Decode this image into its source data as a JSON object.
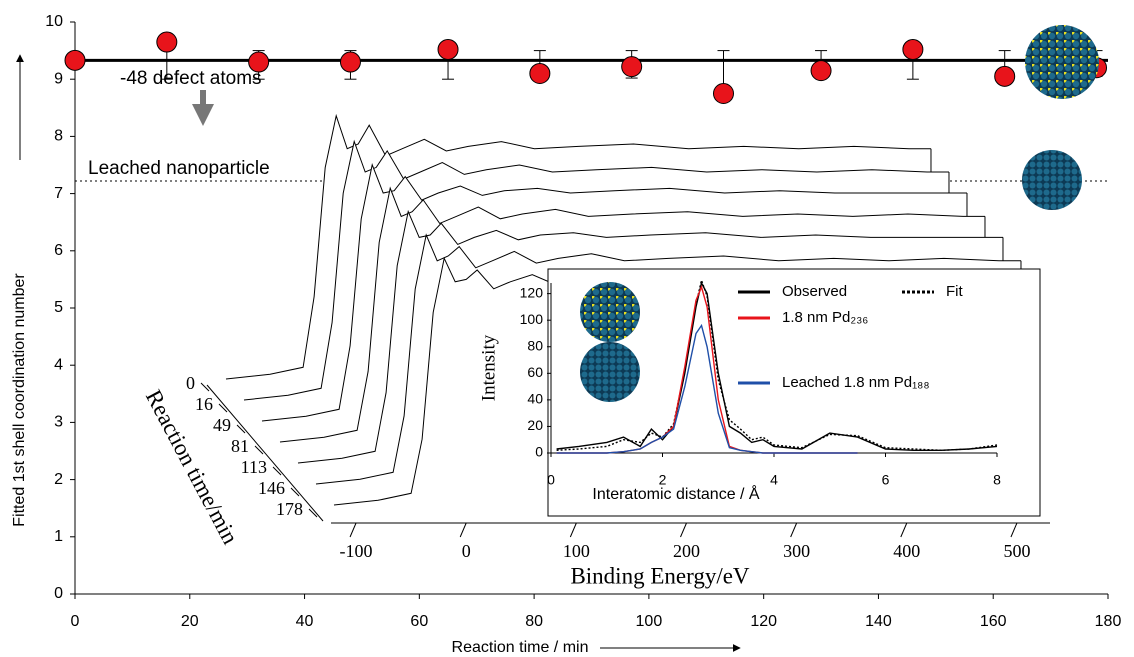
{
  "chart_data": [
    {
      "type": "scatter",
      "x_label": "Reaction time / min",
      "y_label": "Fitted 1st shell coordination number",
      "x": [
        0,
        16,
        32,
        48,
        65,
        81,
        97,
        113,
        130,
        146,
        162,
        178
      ],
      "values": [
        9.33,
        9.65,
        9.3,
        9.3,
        9.52,
        9.1,
        9.22,
        8.75,
        9.15,
        9.52,
        9.05,
        9.2
      ],
      "error_minus": [
        0,
        0.65,
        0.3,
        0.3,
        0.52,
        0,
        0.2,
        0,
        0,
        0.52,
        0,
        0.15
      ],
      "error_plus": [
        0,
        0,
        0.2,
        0.2,
        0,
        0.4,
        0.28,
        0.75,
        0.35,
        0,
        0.45,
        0.3
      ],
      "color": "#e8141b",
      "xlim": [
        0,
        180
      ],
      "ylim": [
        0,
        10
      ],
      "xticks": [
        0,
        20,
        40,
        60,
        80,
        100,
        120,
        140,
        160,
        180
      ],
      "yticks": [
        0,
        1,
        2,
        3,
        4,
        5,
        6,
        7,
        8,
        9,
        10
      ],
      "mean_line": 9.33,
      "reference_line": 7.22,
      "reference_label": "Leached nanoparticle",
      "annotation": "-48 defect atoms"
    },
    {
      "type": "waterfall",
      "x_label": "Binding Energy/eV",
      "z_label": "Reaction time/min",
      "x": [
        -120,
        -80,
        -50,
        -40,
        -30,
        -20,
        -10,
        0,
        10,
        25,
        40,
        60,
        80,
        100,
        130,
        160,
        200,
        250,
        300,
        350,
        400,
        450,
        500,
        520
      ],
      "xlim": [
        -130,
        530
      ],
      "ylim": [
        0,
        1.2
      ],
      "xticks": [
        -100,
        0,
        100,
        200,
        300,
        400,
        500
      ],
      "color": "#000000",
      "series": [
        {
          "name": "0",
          "values": [
            0.0,
            0.02,
            0.05,
            0.35,
            0.9,
            1.12,
            0.98,
            1.0,
            1.08,
            0.95,
            0.98,
            1.02,
            0.97,
            0.99,
            1.01,
            0.98,
            0.99,
            1.0,
            0.98,
            0.99,
            0.98,
            0.99,
            0.98,
            0.98
          ]
        },
        {
          "name": "16",
          "values": [
            0.0,
            0.02,
            0.05,
            0.33,
            0.88,
            1.1,
            0.97,
            0.99,
            1.06,
            0.94,
            0.97,
            1.01,
            0.96,
            0.98,
            1.0,
            0.97,
            0.98,
            0.99,
            0.97,
            0.98,
            0.97,
            0.98,
            0.97,
            0.97
          ]
        },
        {
          "name": "49",
          "values": [
            0.0,
            0.02,
            0.05,
            0.32,
            0.86,
            1.09,
            0.97,
            0.98,
            1.04,
            0.94,
            0.97,
            1.0,
            0.96,
            0.98,
            0.99,
            0.97,
            0.98,
            0.99,
            0.97,
            0.98,
            0.97,
            0.97,
            0.97,
            0.97
          ]
        },
        {
          "name": "81",
          "values": [
            0.0,
            0.02,
            0.05,
            0.3,
            0.85,
            1.08,
            0.96,
            0.98,
            1.03,
            0.93,
            0.96,
            1.0,
            0.95,
            0.97,
            0.99,
            0.96,
            0.97,
            0.98,
            0.96,
            0.97,
            0.96,
            0.97,
            0.96,
            0.96
          ]
        },
        {
          "name": "113",
          "values": [
            0.0,
            0.02,
            0.05,
            0.3,
            0.84,
            1.07,
            0.96,
            0.97,
            1.02,
            0.93,
            0.96,
            0.99,
            0.95,
            0.97,
            0.98,
            0.96,
            0.97,
            0.98,
            0.96,
            0.97,
            0.96,
            0.96,
            0.96,
            0.96
          ]
        },
        {
          "name": "146",
          "values": [
            0.0,
            0.02,
            0.05,
            0.29,
            0.83,
            1.06,
            0.95,
            0.97,
            1.01,
            0.92,
            0.95,
            0.99,
            0.94,
            0.96,
            0.98,
            0.95,
            0.96,
            0.97,
            0.95,
            0.96,
            0.95,
            0.96,
            0.95,
            0.95
          ]
        },
        {
          "name": "178",
          "values": [
            0.0,
            0.02,
            0.05,
            0.28,
            0.82,
            1.05,
            0.95,
            0.96,
            1.0,
            0.92,
            0.95,
            0.98,
            0.94,
            0.96,
            0.97,
            0.95,
            0.96,
            0.97,
            0.95,
            0.96,
            0.95,
            0.95,
            0.95,
            0.95
          ]
        }
      ]
    },
    {
      "type": "line",
      "x_label": "Interatomic distance / Å",
      "y_label": "Intensity",
      "x": [
        0.1,
        0.5,
        1.0,
        1.3,
        1.6,
        1.8,
        2.0,
        2.2,
        2.4,
        2.6,
        2.7,
        2.8,
        3.0,
        3.2,
        3.4,
        3.6,
        3.8,
        4.0,
        4.5,
        5.0,
        5.5,
        6.0,
        6.5,
        7.0,
        7.5,
        8.0
      ],
      "xlim": [
        0,
        8
      ],
      "ylim": [
        0,
        128
      ],
      "xticks": [
        0,
        2,
        4,
        6,
        8
      ],
      "yticks": [
        0,
        20,
        40,
        60,
        80,
        100,
        120
      ],
      "series": [
        {
          "name": "Observed",
          "color": "#000000",
          "dash": false,
          "values": [
            3,
            5,
            8,
            12,
            5,
            18,
            10,
            20,
            60,
            110,
            128,
            120,
            60,
            20,
            15,
            8,
            10,
            5,
            3,
            15,
            12,
            3,
            2,
            2,
            3,
            5
          ]
        },
        {
          "name": "Fit",
          "color": "#000000",
          "dash": true,
          "values": [
            2,
            3,
            5,
            10,
            8,
            15,
            12,
            22,
            62,
            112,
            130,
            118,
            55,
            25,
            18,
            10,
            12,
            6,
            4,
            14,
            13,
            4,
            3,
            2,
            3,
            6
          ]
        },
        {
          "name": "1.8 nm Pd₂₃₆",
          "color": "#e8141b",
          "dash": false,
          "values": [
            0,
            0,
            0,
            1,
            3,
            8,
            12,
            20,
            65,
            115,
            125,
            110,
            40,
            5,
            2,
            1,
            0,
            0,
            0,
            0,
            0,
            null,
            null,
            null,
            null,
            null
          ]
        },
        {
          "name": "Leached 1.8 nm Pd₁₈₈",
          "color": "#1f4fa8",
          "dash": false,
          "values": [
            0,
            0,
            0,
            1,
            3,
            8,
            12,
            18,
            50,
            90,
            96,
            80,
            30,
            4,
            2,
            1,
            0,
            0,
            0,
            0,
            0,
            null,
            null,
            null,
            null,
            null
          ]
        }
      ]
    }
  ]
}
